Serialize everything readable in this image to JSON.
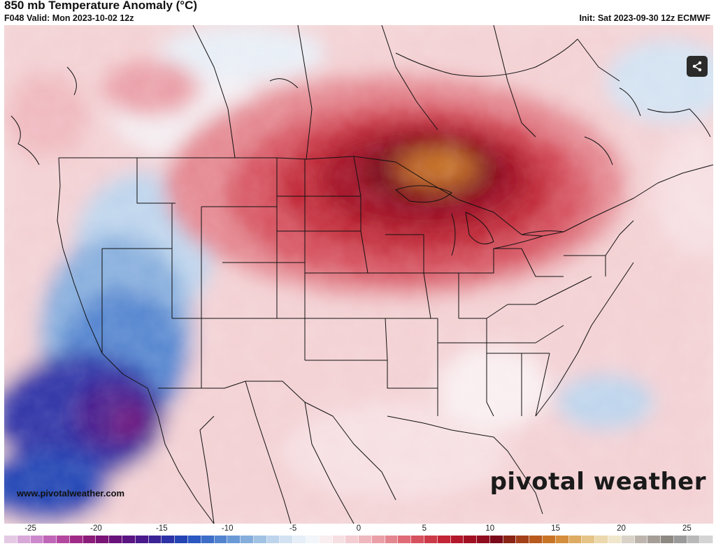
{
  "header": {
    "title": "850 mb Temperature Anomaly (°C)",
    "valid": "F048 Valid: Mon 2023-10-02 12z",
    "init": "Init: Sat 2023-09-30 12z ECMWF"
  },
  "footer": {
    "site": "www.pivotalweather.com",
    "brand": "pivotal weather"
  },
  "toolbar": {
    "share_icon": "share-icon"
  },
  "map": {
    "region": "Contiguous United States",
    "anomalies": {
      "warm_core": "Upper Midwest / Great Lakes",
      "cold_core": "California / Southwest offshore"
    }
  },
  "legend": {
    "ticks": [
      "-25",
      "-20",
      "-15",
      "-10",
      "-5",
      "0",
      "5",
      "10",
      "15",
      "20",
      "25"
    ],
    "min": -27,
    "max": 27,
    "colors": [
      "#e4c9e4",
      "#d8a8d8",
      "#cc88cc",
      "#c066b8",
      "#b3479f",
      "#a02a88",
      "#8c1c79",
      "#7a1477",
      "#6a127c",
      "#5a1583",
      "#4a1a8c",
      "#3a2396",
      "#2d33a6",
      "#2444b4",
      "#2a58c0",
      "#3d6ec8",
      "#5284cf",
      "#6a99d6",
      "#86aedd",
      "#a2c2e4",
      "#bdd4ec",
      "#d3e2f2",
      "#e6eef7",
      "#f2f5f9",
      "#f9eef0",
      "#f6dfe2",
      "#f3cdd2",
      "#efb8be",
      "#ea9fa7",
      "#e4868f",
      "#de6b76",
      "#d6515e",
      "#cc3a48",
      "#c12536",
      "#b3172a",
      "#a11022",
      "#8e0c1d",
      "#7a0a1a",
      "#8a2414",
      "#a3401a",
      "#b85a1e",
      "#c97526",
      "#d48e3c",
      "#ddab62",
      "#e5c487",
      "#ecd8ad",
      "#f0e6cc",
      "#d8d2c8",
      "#bdb5ad",
      "#a59e97",
      "#8e8883",
      "#9a9a9a",
      "#b8b8b8",
      "#d4d4d4"
    ]
  }
}
